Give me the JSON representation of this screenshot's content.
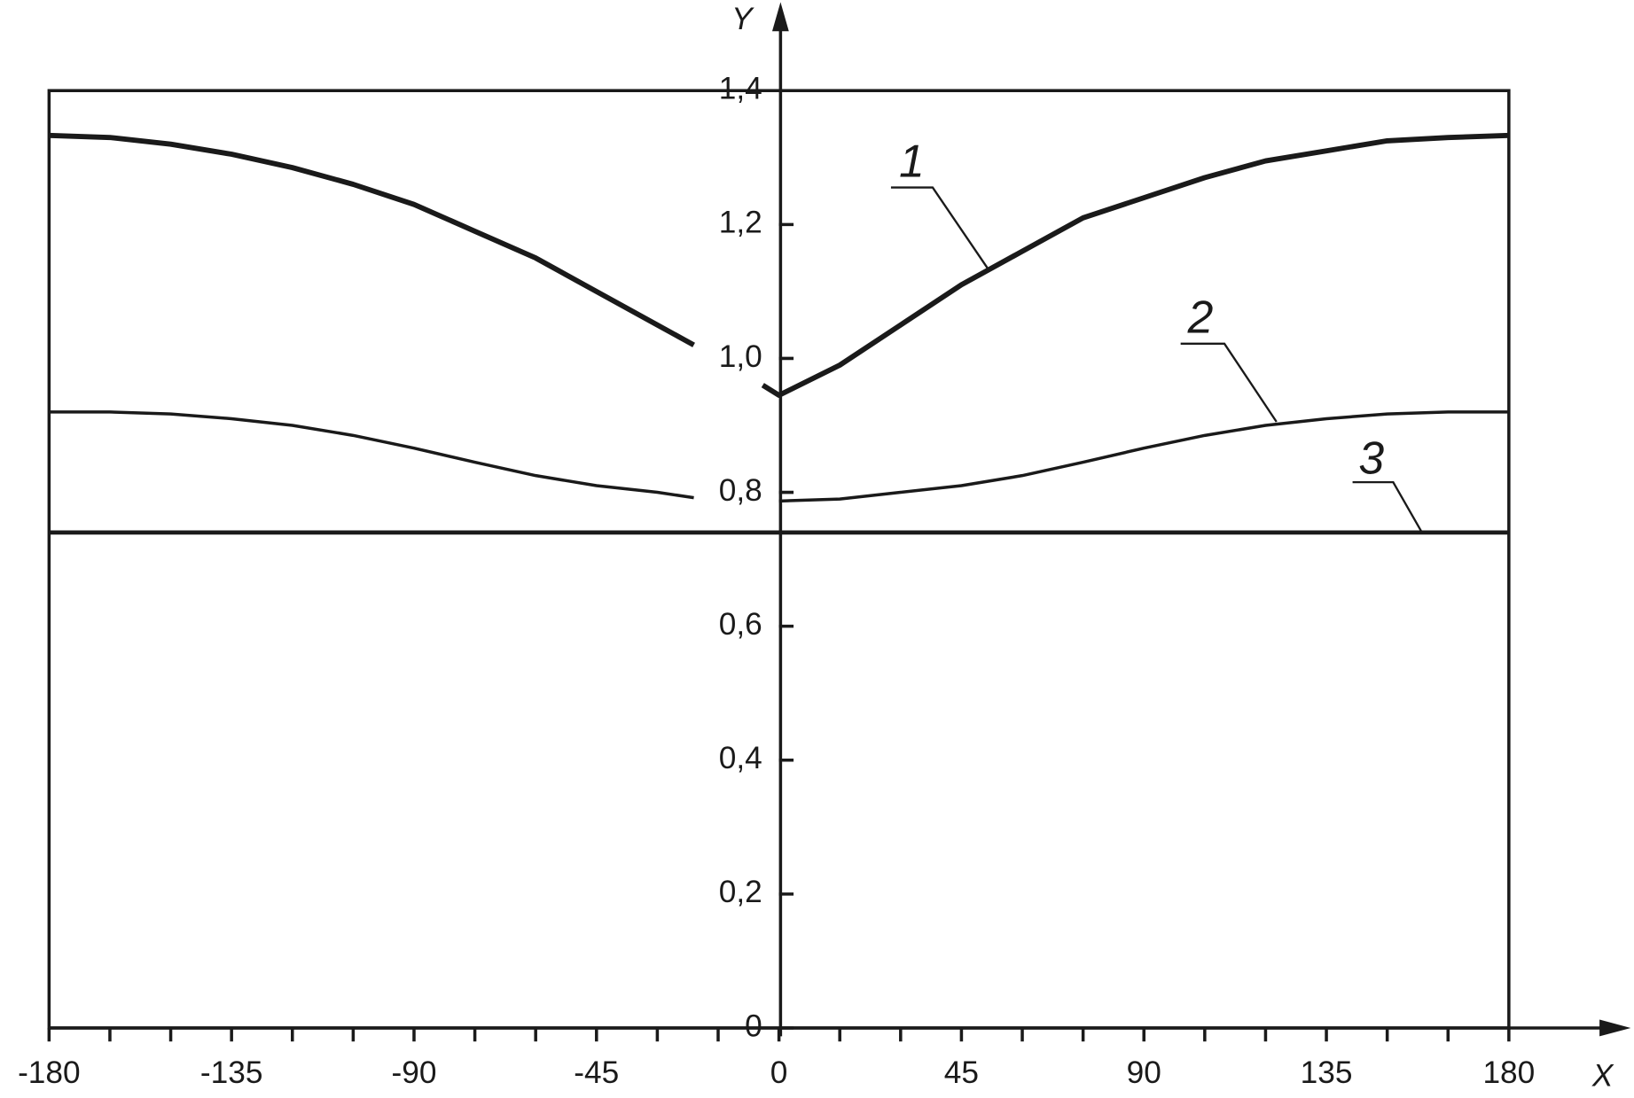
{
  "chart_data": {
    "type": "line",
    "x_label": "X",
    "y_label": "Y",
    "x": [
      -180,
      -165,
      -150,
      -135,
      -120,
      -105,
      -90,
      -75,
      -60,
      -45,
      -30,
      -21,
      -15,
      -4,
      0,
      15,
      30,
      45,
      60,
      75,
      90,
      105,
      120,
      135,
      150,
      165,
      180
    ],
    "series": [
      {
        "name": "1",
        "color": "#1a1a1a",
        "width": 5,
        "values": [
          1.333,
          1.33,
          1.32,
          1.305,
          1.285,
          1.26,
          1.23,
          1.19,
          1.15,
          1.1,
          1.05,
          1.02,
          null,
          0.96,
          0.945,
          0.99,
          1.05,
          1.11,
          1.16,
          1.21,
          1.24,
          1.27,
          1.295,
          1.31,
          1.325,
          1.33,
          1.333
        ]
      },
      {
        "name": "2",
        "color": "#1a1a1a",
        "width": 3,
        "values": [
          0.92,
          0.92,
          0.917,
          0.91,
          0.9,
          0.885,
          0.866,
          0.845,
          0.825,
          0.81,
          0.8,
          0.792,
          null,
          null,
          0.787,
          0.79,
          0.8,
          0.81,
          0.825,
          0.845,
          0.866,
          0.885,
          0.9,
          0.91,
          0.917,
          0.92,
          0.92
        ]
      },
      {
        "name": "3",
        "color": "#1a1a1a",
        "width": 4,
        "values": [
          0.74,
          0.74,
          0.74,
          0.74,
          0.74,
          0.74,
          0.74,
          0.74,
          0.74,
          0.74,
          0.74,
          0.74,
          0.74,
          0.74,
          0.74,
          0.74,
          0.74,
          0.74,
          0.74,
          0.74,
          0.74,
          0.74,
          0.74,
          0.74,
          0.74,
          0.74,
          0.74
        ]
      }
    ],
    "xlim": [
      -180,
      180
    ],
    "ylim": [
      0,
      1.4
    ],
    "xticks": [
      -180,
      -135,
      -90,
      -45,
      0,
      45,
      90,
      135,
      180
    ],
    "xminorticks": [
      -165,
      -150,
      -120,
      -105,
      -75,
      -60,
      -30,
      -15,
      15,
      30,
      60,
      75,
      105,
      120,
      150,
      165
    ],
    "yticks": [
      0,
      {
        "value": 0.2,
        "label": "0,2"
      },
      {
        "value": 0.4,
        "label": "0,4"
      },
      {
        "value": 0.6,
        "label": "0,6"
      },
      {
        "value": 0.8,
        "label": "0,8"
      },
      {
        "value": 1.0,
        "label": "1,0"
      },
      {
        "value": 1.2,
        "label": "1,2"
      },
      {
        "value": 1.4,
        "label": "1,4"
      }
    ],
    "grid": false
  }
}
